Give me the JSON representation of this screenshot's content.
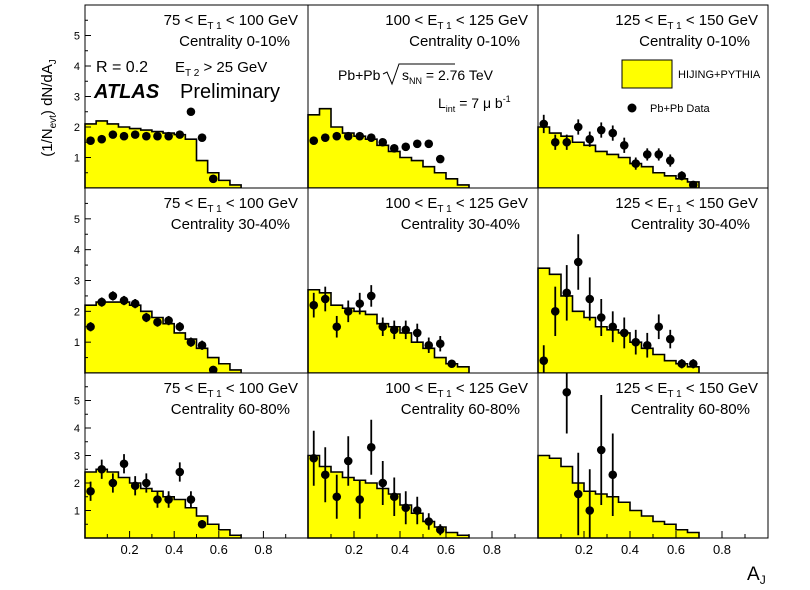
{
  "figure": {
    "ylabel_main": "(1/N",
    "ylabel_evt": "evt",
    "ylabel_mid": ") dN/dA",
    "ylabel_j": "J",
    "xlabel_main": "A",
    "xlabel_j": "J",
    "atlas": "ATLAS",
    "preliminary": "Preliminary",
    "radius": "R = 0.2",
    "et2_pre": "E",
    "et2_sub": "T 2",
    "et2_post": " > 25 GeV",
    "system_pre": "Pb+Pb",
    "system_s": "s",
    "system_nn": "NN",
    "system_post": " = 2.76 TeV",
    "lumi_pre": "L",
    "lumi_int": "int",
    "lumi_mid": " = 7 μ b",
    "lumi_exp": "-1",
    "legend_mc": "HIJING+PYTHIA",
    "legend_data": "Pb+Pb Data"
  },
  "chart_data": {
    "type": "histogram-grid",
    "xlim": [
      0,
      1
    ],
    "ylim": [
      0,
      6
    ],
    "x_ticks": [
      0.2,
      0.4,
      0.6,
      0.8
    ],
    "x_tick_labels": [
      "0.2",
      "0.4",
      "0.6",
      "0.8"
    ],
    "y_ticks": [
      1,
      2,
      3,
      4,
      5
    ],
    "y_tick_labels": [
      "1",
      "2",
      "3",
      "4",
      "5"
    ],
    "bin_edges": [
      0,
      0.05,
      0.1,
      0.15,
      0.2,
      0.25,
      0.3,
      0.35,
      0.4,
      0.45,
      0.5,
      0.55,
      0.6,
      0.65,
      0.7
    ],
    "rows": [
      "Centrality 0-10%",
      "Centrality 30-40%",
      "Centrality 60-80%"
    ],
    "cols": [
      "75 < E_T1 < 100 GeV",
      "100 < E_T1 < 125 GeV",
      "125 < E_T1 < 150 GeV"
    ],
    "panels": [
      {
        "pt_lo": "75",
        "pt_hi": "100",
        "centrality": "Centrality 0-10%",
        "mc": [
          2.1,
          2.2,
          2.1,
          2.0,
          1.95,
          1.9,
          1.85,
          1.8,
          1.75,
          1.6,
          0.9,
          0.5,
          0.25,
          0.1
        ],
        "data_x": [
          0.025,
          0.075,
          0.125,
          0.175,
          0.225,
          0.275,
          0.325,
          0.375,
          0.425,
          0.475,
          0.525,
          0.575
        ],
        "data_y": [
          1.55,
          1.6,
          1.75,
          1.7,
          1.75,
          1.7,
          1.7,
          1.7,
          1.75,
          2.5,
          1.65,
          0.3
        ],
        "data_err": [
          0.1,
          0.1,
          0.1,
          0.1,
          0.1,
          0.1,
          0.1,
          0.1,
          0.1,
          0.1,
          0.1,
          0.1
        ]
      },
      {
        "pt_lo": "100",
        "pt_hi": "125",
        "centrality": "Centrality 0-10%",
        "mc": [
          2.4,
          2.6,
          2.0,
          1.8,
          1.7,
          1.6,
          1.4,
          1.2,
          1.0,
          0.9,
          0.7,
          0.5,
          0.3,
          0.1
        ],
        "data_x": [
          0.025,
          0.075,
          0.125,
          0.175,
          0.225,
          0.275,
          0.325,
          0.375,
          0.425,
          0.475,
          0.525,
          0.575
        ],
        "data_y": [
          1.55,
          1.65,
          1.7,
          1.7,
          1.7,
          1.65,
          1.5,
          1.3,
          1.35,
          1.45,
          1.45,
          0.95
        ],
        "data_err": [
          0.1,
          0.1,
          0.1,
          0.1,
          0.1,
          0.1,
          0.1,
          0.1,
          0.1,
          0.1,
          0.1,
          0.1
        ]
      },
      {
        "pt_lo": "125",
        "pt_hi": "150",
        "centrality": "Centrality 0-10%",
        "mc": [
          2.0,
          1.8,
          1.7,
          1.5,
          1.4,
          1.2,
          1.1,
          1.0,
          0.8,
          0.7,
          0.5,
          0.4,
          0.3,
          0.2
        ],
        "data_x": [
          0.025,
          0.075,
          0.125,
          0.175,
          0.225,
          0.275,
          0.325,
          0.375,
          0.425,
          0.475,
          0.525,
          0.575,
          0.625,
          0.675
        ],
        "data_y": [
          2.1,
          1.5,
          1.5,
          2.0,
          1.6,
          1.9,
          1.8,
          1.4,
          0.8,
          1.1,
          1.1,
          0.9,
          0.4,
          0.1
        ],
        "data_err": [
          0.3,
          0.25,
          0.25,
          0.25,
          0.25,
          0.25,
          0.25,
          0.25,
          0.2,
          0.2,
          0.2,
          0.2,
          0.15,
          0.05
        ]
      },
      {
        "pt_lo": "75",
        "pt_hi": "100",
        "centrality": "Centrality 30-40%",
        "mc": [
          2.2,
          2.3,
          2.3,
          2.3,
          2.2,
          2.0,
          1.8,
          1.6,
          1.3,
          1.1,
          0.8,
          0.5,
          0.3,
          0.1
        ],
        "data_x": [
          0.025,
          0.075,
          0.125,
          0.175,
          0.225,
          0.275,
          0.325,
          0.375,
          0.425,
          0.475,
          0.525,
          0.575
        ],
        "data_y": [
          1.5,
          2.3,
          2.5,
          2.35,
          2.25,
          1.8,
          1.65,
          1.7,
          1.5,
          1.0,
          0.9,
          0.1
        ],
        "data_err": [
          0.15,
          0.15,
          0.15,
          0.15,
          0.15,
          0.15,
          0.15,
          0.15,
          0.15,
          0.15,
          0.15,
          0.05
        ]
      },
      {
        "pt_lo": "100",
        "pt_hi": "125",
        "centrality": "Centrality 30-40%",
        "mc": [
          2.7,
          2.6,
          2.2,
          2.1,
          2.0,
          1.9,
          1.6,
          1.5,
          1.3,
          1.0,
          0.8,
          0.5,
          0.3,
          0.2
        ],
        "data_x": [
          0.025,
          0.075,
          0.125,
          0.175,
          0.225,
          0.275,
          0.325,
          0.375,
          0.425,
          0.475,
          0.525,
          0.575,
          0.625
        ],
        "data_y": [
          2.2,
          2.4,
          1.5,
          2.0,
          2.25,
          2.5,
          1.5,
          1.4,
          1.4,
          1.3,
          0.9,
          0.95,
          0.3
        ],
        "data_err": [
          0.4,
          0.4,
          0.35,
          0.35,
          0.35,
          0.35,
          0.3,
          0.3,
          0.3,
          0.3,
          0.25,
          0.25,
          0.1
        ]
      },
      {
        "pt_lo": "125",
        "pt_hi": "150",
        "centrality": "Centrality 30-40%",
        "mc": [
          3.4,
          3.2,
          2.5,
          2.0,
          1.8,
          1.5,
          1.4,
          1.3,
          1.0,
          0.8,
          0.6,
          0.4,
          0.3,
          0.2
        ],
        "data_x": [
          0.025,
          0.075,
          0.125,
          0.175,
          0.225,
          0.275,
          0.325,
          0.375,
          0.425,
          0.475,
          0.525,
          0.575,
          0.625,
          0.675
        ],
        "data_y": [
          0.4,
          2.0,
          2.6,
          3.6,
          2.4,
          1.8,
          1.5,
          1.3,
          1.0,
          0.9,
          1.5,
          1.1,
          0.3,
          0.3
        ],
        "data_err": [
          0.5,
          0.8,
          0.9,
          0.9,
          0.7,
          0.6,
          0.5,
          0.5,
          0.4,
          0.4,
          0.4,
          0.3,
          0.15,
          0.15
        ]
      },
      {
        "pt_lo": "75",
        "pt_hi": "100",
        "centrality": "Centrality 60-80%",
        "mc": [
          2.4,
          2.5,
          2.4,
          2.2,
          2.0,
          1.8,
          1.7,
          1.5,
          1.4,
          1.1,
          0.8,
          0.5,
          0.3,
          0.1
        ],
        "data_x": [
          0.025,
          0.075,
          0.125,
          0.175,
          0.225,
          0.275,
          0.325,
          0.375,
          0.425,
          0.475,
          0.525
        ],
        "data_y": [
          1.7,
          2.5,
          2.0,
          2.7,
          1.9,
          2.0,
          1.4,
          1.4,
          2.4,
          1.4,
          0.5
        ],
        "data_err": [
          0.35,
          0.35,
          0.35,
          0.35,
          0.35,
          0.35,
          0.3,
          0.3,
          0.35,
          0.3,
          0.15
        ]
      },
      {
        "pt_lo": "100",
        "pt_hi": "125",
        "centrality": "Centrality 60-80%",
        "mc": [
          3.0,
          2.6,
          2.4,
          2.2,
          2.1,
          2.0,
          1.8,
          1.6,
          1.2,
          0.9,
          0.6,
          0.4,
          0.2,
          0.1
        ],
        "data_x": [
          0.025,
          0.075,
          0.125,
          0.175,
          0.225,
          0.275,
          0.325,
          0.375,
          0.425,
          0.475,
          0.525,
          0.575
        ],
        "data_y": [
          2.9,
          2.3,
          1.5,
          2.8,
          1.4,
          3.3,
          2.0,
          1.5,
          1.1,
          1.0,
          0.6,
          0.3
        ],
        "data_err": [
          1.0,
          1.0,
          0.8,
          0.9,
          0.7,
          1.0,
          0.8,
          0.7,
          0.6,
          0.5,
          0.3,
          0.2
        ]
      },
      {
        "pt_lo": "125",
        "pt_hi": "150",
        "centrality": "Centrality 60-80%",
        "mc": [
          3.0,
          2.9,
          2.6,
          2.0,
          1.7,
          1.6,
          1.5,
          1.3,
          1.0,
          0.8,
          0.6,
          0.5,
          0.3,
          0.2
        ],
        "data_x": [
          0.125,
          0.175,
          0.225,
          0.275,
          0.325
        ],
        "data_y": [
          5.3,
          1.6,
          1.0,
          3.2,
          2.3
        ],
        "data_err": [
          1.5,
          1.5,
          1.5,
          2.0,
          1.5
        ]
      }
    ]
  }
}
